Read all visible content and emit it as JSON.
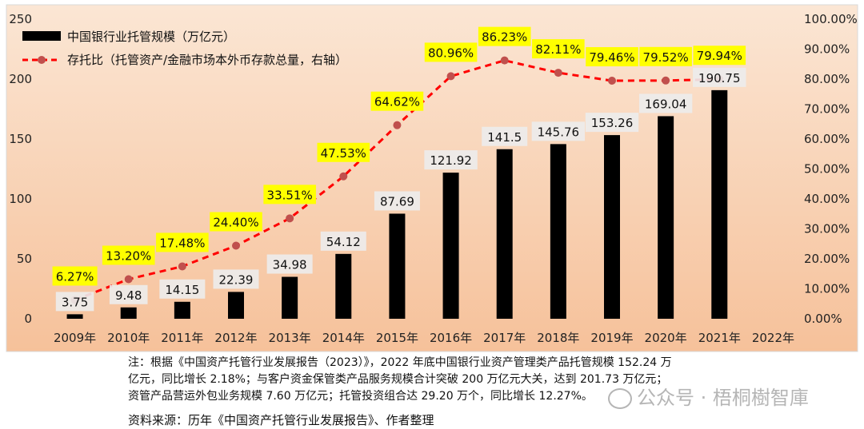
{
  "chart_data": {
    "type": "bar",
    "categories": [
      "2009年",
      "2010年",
      "2011年",
      "2012年",
      "2013年",
      "2014年",
      "2015年",
      "2016年",
      "2017年",
      "2018年",
      "2019年",
      "2020年",
      "2021年",
      "2022年"
    ],
    "series": [
      {
        "name": "中国银行业托管规模（万亿元）",
        "type": "bar",
        "axis": "left",
        "values": [
          3.75,
          9.48,
          14.15,
          22.39,
          34.98,
          54.12,
          87.69,
          121.92,
          141.5,
          145.76,
          153.26,
          169.04,
          190.75,
          null
        ],
        "labels": [
          "3.75",
          "9.48",
          "14.15",
          "22.39",
          "34.98",
          "54.12",
          "87.69",
          "121.92",
          "141.5",
          "145.76",
          "153.26",
          "169.04",
          "190.75",
          ""
        ],
        "color": "#000000"
      },
      {
        "name": "存托比（托管资产/金融市场本外币存款总量，右轴）",
        "type": "line",
        "axis": "right",
        "values": [
          6.27,
          13.2,
          17.48,
          24.4,
          33.51,
          47.53,
          64.62,
          80.96,
          86.23,
          82.11,
          79.46,
          79.52,
          79.94,
          null
        ],
        "labels": [
          "6.27%",
          "13.20%",
          "17.48%",
          "24.40%",
          "33.51%",
          "47.53%",
          "64.62%",
          "80.96%",
          "86.23%",
          "82.11%",
          "79.46%",
          "79.52%",
          "79.94%",
          ""
        ],
        "color": "#c0504d",
        "label_bg": "#ffff00"
      }
    ],
    "ylim": [
      0,
      250
    ],
    "yticks": [
      "0",
      "50",
      "100",
      "150",
      "200",
      "250"
    ],
    "y2lim": [
      0,
      100
    ],
    "y2ticks": [
      "0.00%",
      "10.00%",
      "20.00%",
      "30.00%",
      "40.00%",
      "50.00%",
      "60.00%",
      "70.00%",
      "80.00%",
      "90.00%",
      "100.00%"
    ],
    "legend_position": "top-left",
    "grid": false,
    "background_gradient": [
      "#fbe6d4",
      "#f6c19a"
    ]
  },
  "note_lines": [
    "注：根据《中国资产托管行业发展报告（2023）》，2022 年底中国银行业资产管理类产品托管规模 152.24 万",
    "亿元，同比增长 2.18%；与客户资金保管类产品服务规模合计突破 200 万亿元大关，达到 201.73 万亿元；",
    "资管产品营运外包业务规模 7.60 万亿元；托管投资组合达 29.20 万个，同比增长 12.27%。"
  ],
  "source": "资料来源：历年《中国资产托管行业发展报告》、作者整理",
  "watermark": "公众号 · 梧桐樹智庫"
}
